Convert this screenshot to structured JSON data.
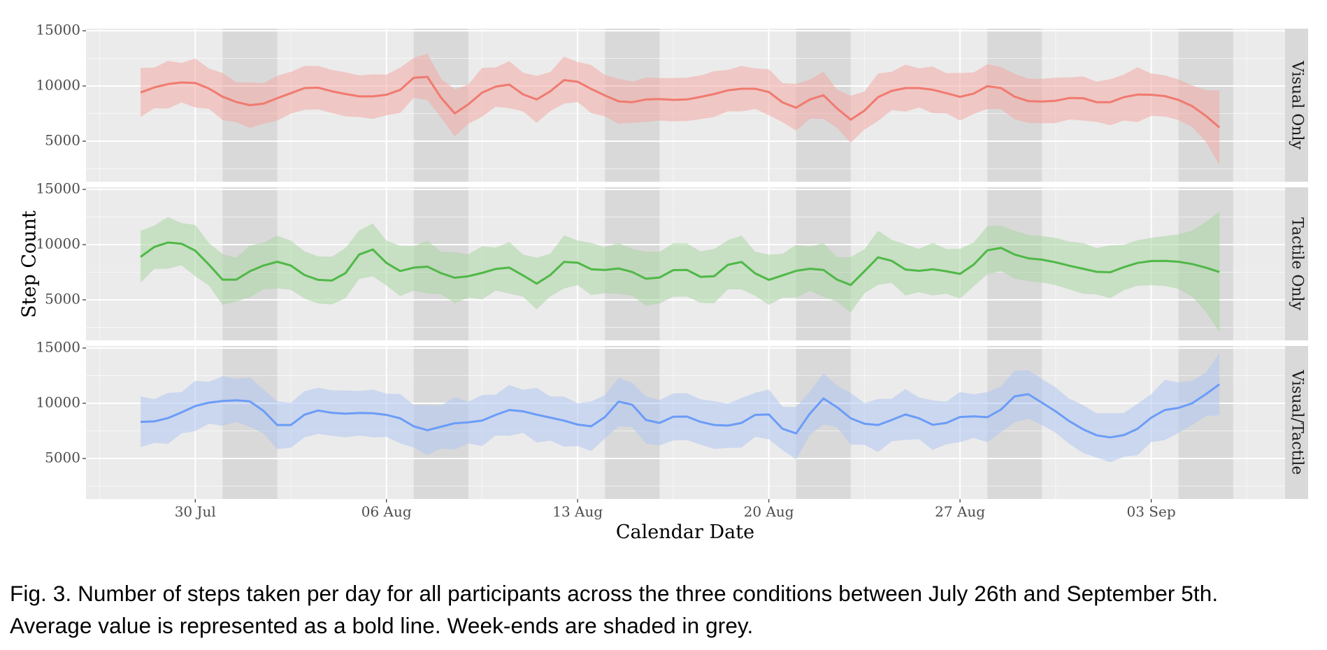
{
  "figure": {
    "caption_line1": "Fig. 3.  Number of steps taken per day for all participants across the three conditions between July 26th and September 5th.",
    "caption_line2": "Average value is represented as a bold line. Week-ends are shaded in grey."
  },
  "chart_data": {
    "type": "line",
    "subtype": "faceted line with ribbon (mean with upper/lower band)",
    "xlabel": "Calendar Date",
    "ylabel": "Step Count",
    "grid": true,
    "legend": "none",
    "x": {
      "unit": "days since 28 Jul",
      "start_label": "28 Jul",
      "step_days": 0.5,
      "count": 80,
      "range_days": [
        -2,
        41.9
      ],
      "ticks": [
        {
          "day": 2,
          "label": "30 Jul"
        },
        {
          "day": 9,
          "label": "06 Aug"
        },
        {
          "day": 16,
          "label": "13 Aug"
        },
        {
          "day": 23,
          "label": "20 Aug"
        },
        {
          "day": 30,
          "label": "27 Aug"
        },
        {
          "day": 37,
          "label": "03 Sep"
        }
      ],
      "weekend_shading_days": [
        [
          3,
          5
        ],
        [
          10,
          12
        ],
        [
          17,
          19
        ],
        [
          24,
          26
        ],
        [
          31,
          33
        ],
        [
          38,
          40
        ]
      ]
    },
    "y": {
      "range": [
        1330,
        15190
      ],
      "ticks": [
        5000,
        10000,
        15000
      ],
      "tick_labels": [
        "5000",
        "10000",
        "15000"
      ]
    },
    "colors": {
      "panel_bg": "#ebebeb",
      "weekend": "#d9d9d9",
      "strip_bg": "#d9d9d9",
      "grid": "#ffffff"
    },
    "panels": [
      {
        "name": "Visual Only",
        "color": "#f07a70",
        "fill": "#f3aaa4",
        "mean": [
          9410,
          9870,
          10170,
          10320,
          10270,
          9770,
          9030,
          8550,
          8260,
          8400,
          8890,
          9350,
          9810,
          9850,
          9520,
          9270,
          9060,
          9060,
          9200,
          9640,
          10740,
          10820,
          8930,
          7520,
          8340,
          9390,
          9940,
          10130,
          9240,
          8780,
          9520,
          10530,
          10380,
          9730,
          9140,
          8610,
          8530,
          8780,
          8820,
          8740,
          8780,
          9010,
          9270,
          9600,
          9750,
          9750,
          9450,
          8510,
          8030,
          8780,
          9160,
          7960,
          6950,
          7770,
          8990,
          9560,
          9810,
          9810,
          9660,
          9350,
          9010,
          9310,
          9980,
          9810,
          9030,
          8630,
          8590,
          8660,
          8910,
          8890,
          8530,
          8530,
          8990,
          9220,
          9200,
          9080,
          8740,
          8170,
          7290,
          6240
        ],
        "upper": [
          11640,
          11660,
          12270,
          12080,
          12480,
          11580,
          11180,
          10340,
          10320,
          10250,
          10920,
          11280,
          11810,
          11810,
          11450,
          11240,
          10950,
          11050,
          11030,
          11660,
          12540,
          12940,
          10650,
          9690,
          10130,
          11640,
          11680,
          12250,
          11200,
          10920,
          11260,
          12650,
          12180,
          11890,
          10990,
          10650,
          10400,
          10760,
          10710,
          10710,
          10760,
          10950,
          11340,
          11450,
          11810,
          11580,
          11510,
          10270,
          10190,
          10570,
          11300,
          9660,
          9120,
          9500,
          11130,
          11280,
          11930,
          11600,
          11760,
          11160,
          11180,
          11220,
          11970,
          11700,
          11110,
          10650,
          10650,
          10740,
          10780,
          10860,
          10400,
          10610,
          11030,
          11700,
          11130,
          10970,
          10590,
          10060,
          9620,
          9600
        ],
        "lower": [
          7190,
          7980,
          7960,
          8510,
          8050,
          7940,
          6910,
          6720,
          6200,
          6580,
          6870,
          7500,
          7840,
          7880,
          7560,
          7250,
          7190,
          7020,
          7350,
          7560,
          8930,
          8720,
          7140,
          5440,
          6580,
          7210,
          8130,
          7980,
          7710,
          6660,
          7730,
          8400,
          8550,
          7540,
          7250,
          6580,
          6660,
          6750,
          6870,
          6790,
          6830,
          7000,
          7190,
          7710,
          7710,
          7920,
          7350,
          6720,
          5950,
          7040,
          7020,
          6200,
          4860,
          6050,
          6830,
          7820,
          7670,
          8050,
          7540,
          7520,
          6870,
          7460,
          7920,
          7900,
          6980,
          6660,
          6620,
          6640,
          6960,
          6870,
          6750,
          6450,
          6870,
          6720,
          7290,
          7230,
          6910,
          6300,
          4940,
          2840
        ]
      },
      {
        "name": "Tactile Only",
        "color": "#4fb847",
        "fill": "#a9d6a3",
        "mean": [
          8890,
          9790,
          10190,
          10080,
          9450,
          8190,
          6830,
          6830,
          7590,
          8110,
          8450,
          8110,
          7250,
          6810,
          6750,
          7420,
          9100,
          9560,
          8340,
          7610,
          7920,
          8010,
          7420,
          7000,
          7140,
          7440,
          7800,
          7920,
          7210,
          6470,
          7250,
          8430,
          8360,
          7770,
          7710,
          7840,
          7520,
          6910,
          7020,
          7690,
          7710,
          7080,
          7140,
          8170,
          8430,
          7400,
          6810,
          7210,
          7630,
          7820,
          7710,
          6830,
          6350,
          7590,
          8850,
          8530,
          7750,
          7630,
          7770,
          7590,
          7350,
          8190,
          9480,
          9710,
          9100,
          8760,
          8640,
          8400,
          8090,
          7820,
          7540,
          7500,
          7960,
          8340,
          8510,
          8530,
          8450,
          8240,
          7920,
          7520
        ],
        "upper": [
          11240,
          11720,
          12500,
          11950,
          11790,
          10150,
          9140,
          8820,
          9920,
          10170,
          10800,
          10360,
          9390,
          8930,
          8910,
          9690,
          11280,
          11910,
          10360,
          9900,
          9870,
          10360,
          9350,
          9330,
          9120,
          9850,
          9730,
          10250,
          9100,
          8820,
          9180,
          10820,
          10360,
          10150,
          9770,
          10150,
          9600,
          9350,
          9350,
          10110,
          10110,
          9390,
          9600,
          10400,
          10820,
          9350,
          9100,
          9160,
          9980,
          9810,
          10150,
          8850,
          8870,
          9580,
          11260,
          10440,
          10040,
          9620,
          10150,
          9600,
          9620,
          10190,
          11680,
          11720,
          11260,
          10860,
          10780,
          10610,
          10270,
          10150,
          9690,
          9940,
          9980,
          10400,
          10610,
          10780,
          10920,
          11280,
          12040,
          13020
        ],
        "lower": [
          6560,
          7800,
          7820,
          8130,
          7140,
          6300,
          4540,
          4860,
          5230,
          5950,
          6030,
          5910,
          5110,
          4670,
          4580,
          5150,
          6890,
          7140,
          6300,
          5340,
          5840,
          5590,
          5510,
          4690,
          5210,
          5040,
          5840,
          5570,
          5280,
          4140,
          5320,
          6030,
          6330,
          5440,
          5610,
          5530,
          5360,
          4480,
          4670,
          5280,
          5300,
          4730,
          4690,
          5950,
          5950,
          5360,
          4540,
          5190,
          5210,
          5800,
          5280,
          4830,
          3850,
          5590,
          6370,
          6540,
          5400,
          5700,
          5400,
          5550,
          5110,
          6220,
          7310,
          7630,
          6910,
          6700,
          6580,
          6330,
          5950,
          5550,
          5490,
          5150,
          5880,
          6280,
          6330,
          6260,
          5990,
          5280,
          3950,
          2060
        ]
      },
      {
        "name": "Visual/Tactile",
        "color": "#6b9cf7",
        "fill": "#b1c7f1",
        "mean": [
          8320,
          8360,
          8660,
          9180,
          9750,
          10060,
          10210,
          10270,
          10170,
          9310,
          8030,
          8030,
          8970,
          9350,
          9140,
          9060,
          9120,
          9100,
          8950,
          8640,
          7920,
          7560,
          7880,
          8190,
          8280,
          8430,
          8950,
          9390,
          9270,
          8970,
          8700,
          8430,
          8070,
          7920,
          8760,
          10150,
          9870,
          8490,
          8220,
          8780,
          8800,
          8320,
          8030,
          7980,
          8220,
          8950,
          8990,
          7690,
          7270,
          9060,
          10440,
          9640,
          8640,
          8150,
          8030,
          8490,
          8990,
          8640,
          8050,
          8220,
          8760,
          8820,
          8740,
          9430,
          10630,
          10820,
          10060,
          9270,
          8380,
          7650,
          7100,
          6910,
          7120,
          7690,
          8700,
          9390,
          9580,
          10000,
          10820,
          11720
        ],
        "upper": [
          10630,
          10360,
          10950,
          11010,
          12040,
          11950,
          12440,
          12230,
          12350,
          11260,
          10170,
          10060,
          11090,
          11410,
          11180,
          11160,
          11110,
          11240,
          10880,
          10840,
          9850,
          9850,
          9810,
          10550,
          10150,
          10740,
          10800,
          11660,
          11220,
          11390,
          10630,
          10610,
          10000,
          10170,
          10740,
          12310,
          11850,
          10630,
          10290,
          10900,
          10900,
          10360,
          10190,
          9980,
          10480,
          10950,
          11240,
          9690,
          9660,
          11050,
          12710,
          11580,
          10950,
          10020,
          10400,
          10400,
          11280,
          10530,
          10270,
          10150,
          11010,
          10820,
          11010,
          11530,
          12940,
          13000,
          12210,
          11430,
          10420,
          9850,
          9100,
          9100,
          9120,
          9960,
          10820,
          12120,
          11890,
          12040,
          12770,
          14560
        ],
        "lower": [
          6030,
          6410,
          6330,
          7270,
          7480,
          8150,
          7960,
          8320,
          7860,
          7270,
          5860,
          5970,
          6910,
          7230,
          7060,
          6910,
          7080,
          6910,
          6960,
          6370,
          5990,
          5300,
          5910,
          5800,
          6370,
          6120,
          7080,
          7060,
          7330,
          6450,
          6620,
          6070,
          6120,
          5670,
          6810,
          7920,
          7840,
          6350,
          6180,
          6640,
          6660,
          6260,
          5860,
          5950,
          5990,
          6960,
          6750,
          5760,
          4920,
          7120,
          8090,
          7800,
          6260,
          6240,
          5590,
          6560,
          6680,
          6750,
          5780,
          6280,
          6490,
          6850,
          6490,
          7380,
          8280,
          8590,
          8030,
          7330,
          6330,
          5510,
          5090,
          4670,
          5150,
          5300,
          6490,
          6660,
          7330,
          8030,
          8850,
          8910
        ]
      }
    ]
  }
}
